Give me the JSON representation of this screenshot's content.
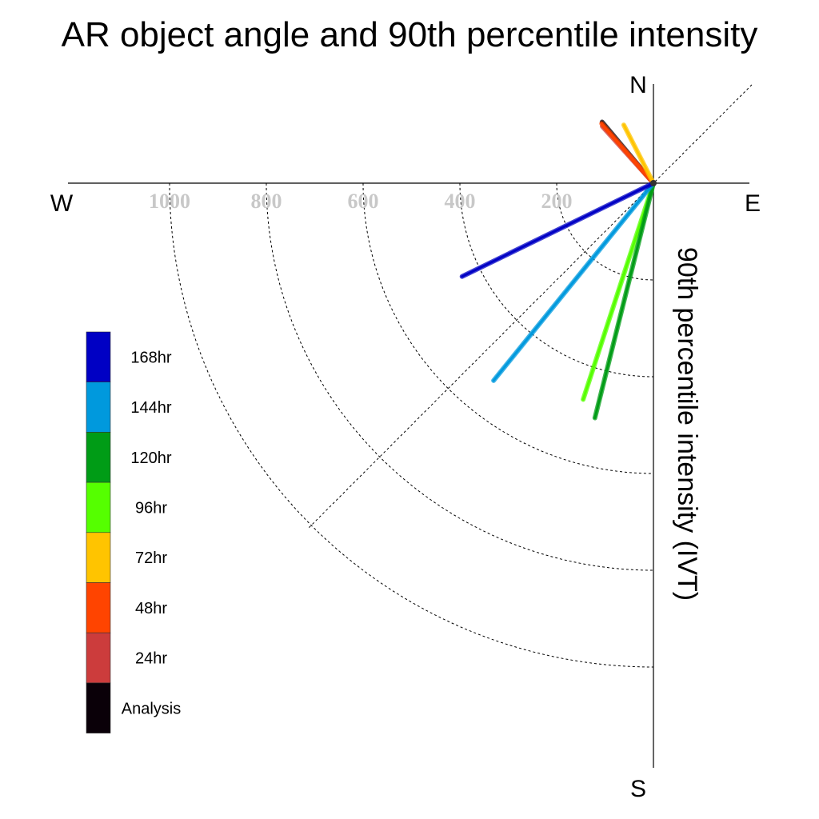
{
  "chart_data": {
    "type": "polar-line",
    "title": "AR object angle and 90th percentile intensity",
    "radial_label": "90th percentile intensity (IVT)",
    "directions": {
      "north": "N",
      "south": "S",
      "east": "E",
      "west": "W"
    },
    "radial_ticks": [
      200,
      400,
      600,
      800,
      1000
    ],
    "radial_max": 1200,
    "series": [
      {
        "name": "Analysis",
        "color": "#0a0008",
        "bearing_deg": 320,
        "intensity": 165
      },
      {
        "name": "24hr",
        "color": "#cc3c3c",
        "bearing_deg": 318,
        "intensity": 158
      },
      {
        "name": "48hr",
        "color": "#ff4400",
        "bearing_deg": 319,
        "intensity": 163
      },
      {
        "name": "72hr",
        "color": "#ffc400",
        "bearing_deg": 333,
        "intensity": 135
      },
      {
        "name": "96hr",
        "color": "#55ff00",
        "bearing_deg": 198,
        "intensity": 470
      },
      {
        "name": "120hr",
        "color": "#009c16",
        "bearing_deg": 194,
        "intensity": 500
      },
      {
        "name": "144hr",
        "color": "#0099dd",
        "bearing_deg": 219,
        "intensity": 525
      },
      {
        "name": "168hr",
        "color": "#0000c4",
        "bearing_deg": 244,
        "intensity": 440
      }
    ],
    "legend_order": [
      "168hr",
      "144hr",
      "120hr",
      "96hr",
      "72hr",
      "48hr",
      "24hr",
      "Analysis"
    ]
  }
}
